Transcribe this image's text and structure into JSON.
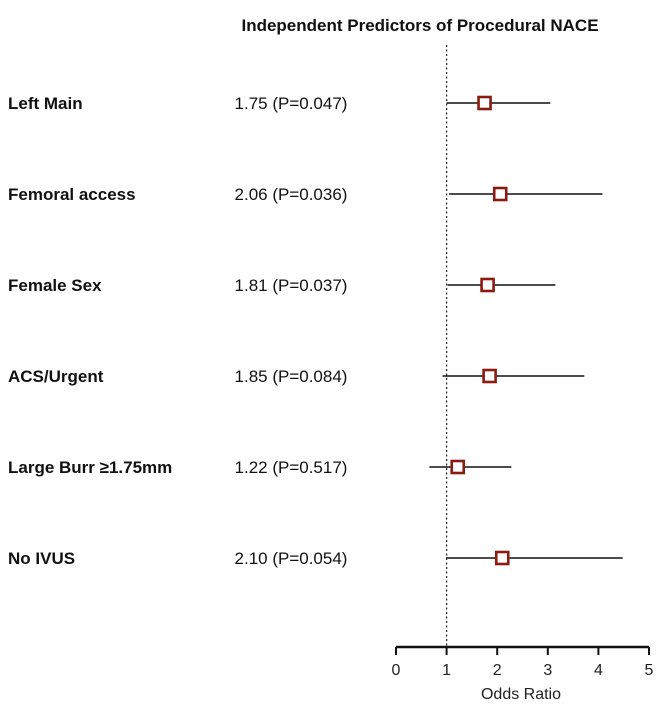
{
  "chart_data": {
    "type": "forest",
    "title": "Independent Predictors of Procedural NACE",
    "xlabel": "Odds Ratio",
    "xlim": [
      0,
      5
    ],
    "xticks": [
      "0",
      "1",
      "2",
      "3",
      "4",
      "5"
    ],
    "reference_line": 1,
    "grid": false,
    "marker_color": "#8B1A10",
    "rows": [
      {
        "label": "Left Main",
        "value_text": "1.75 (P=0.047)",
        "or": 1.75,
        "ci_low": 1.0,
        "ci_high": 3.05
      },
      {
        "label": "Femoral access",
        "value_text": "2.06 (P=0.036)",
        "or": 2.06,
        "ci_low": 1.05,
        "ci_high": 4.08
      },
      {
        "label": "Female Sex",
        "value_text": "1.81 (P=0.037)",
        "or": 1.81,
        "ci_low": 1.02,
        "ci_high": 3.15
      },
      {
        "label": "ACS/Urgent",
        "value_text": "1.85 (P=0.084)",
        "or": 1.85,
        "ci_low": 0.92,
        "ci_high": 3.72
      },
      {
        "label": "Large Burr ≥1.75mm",
        "value_text": "1.22 (P=0.517)",
        "or": 1.22,
        "ci_low": 0.66,
        "ci_high": 2.28
      },
      {
        "label": "No IVUS",
        "value_text": "2.10 (P=0.054)",
        "or": 2.1,
        "ci_low": 0.99,
        "ci_high": 4.48
      }
    ]
  }
}
